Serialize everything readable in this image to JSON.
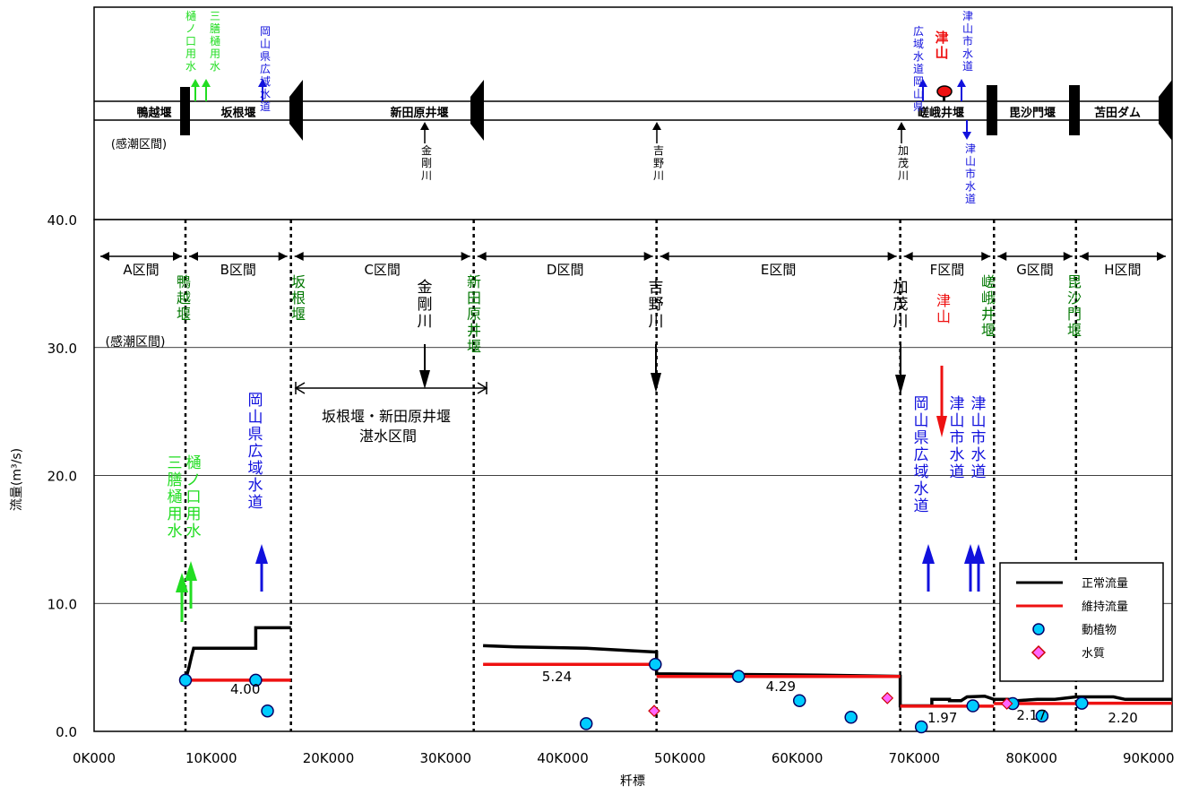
{
  "schematic": {
    "weirs": [
      {
        "id": "kamo",
        "label": "鴨越堰"
      },
      {
        "id": "sakane",
        "label": "坂根堰"
      },
      {
        "id": "shindenbara",
        "label": "新田原井堰"
      },
      {
        "id": "saga",
        "label": "嵯峨井堰"
      },
      {
        "id": "bishamon",
        "label": "毘沙門堰"
      },
      {
        "id": "tomata",
        "label": "苫田ダム"
      }
    ],
    "tidal_label": "(感潮区間)",
    "intakes": [
      {
        "id": "hinokuchi",
        "label": "樋ノ口用水",
        "color": "#22dd22"
      },
      {
        "id": "mitsuzen",
        "label": "三膳樋用水",
        "color": "#22dd22"
      },
      {
        "id": "okayama1",
        "label": "岡山県広域水道",
        "color": "#1111dd"
      },
      {
        "id": "okayama2",
        "label": "広域水道岡山県",
        "color": "#1111dd"
      },
      {
        "id": "tsuyama_up",
        "label": "津山市水道",
        "color": "#1111dd"
      },
      {
        "id": "tsuyama_down",
        "label": "津山市水道",
        "color": "#1111dd"
      }
    ],
    "tributaries": [
      {
        "id": "kongo",
        "label": "金剛川"
      },
      {
        "id": "yoshino",
        "label": "吉野川"
      },
      {
        "id": "kamogawa",
        "label": "加茂川"
      }
    ],
    "city": {
      "label": "津山",
      "color": "#ee1111"
    }
  },
  "main": {
    "sections": [
      "A区間",
      "B区間",
      "C区間",
      "D区間",
      "E区間",
      "F区間",
      "G区間",
      "H区間"
    ],
    "tidal_label": "(感潮区間)",
    "weir_labels": [
      "鴨越堰",
      "坂根堰",
      "新田原井堰",
      "嵯峨井堰",
      "毘沙門堰"
    ],
    "tributary_labels": [
      "金剛川",
      "吉野川",
      "加茂川"
    ],
    "city_label": "津山",
    "intake_labels": [
      {
        "text": "三膳樋用水",
        "color": "#22dd22"
      },
      {
        "text": "樋ノ口用水",
        "color": "#22dd22"
      },
      {
        "text": "岡山県広域水道",
        "color": "#1111dd"
      },
      {
        "text": "岡山県広域水道",
        "color": "#1111dd"
      },
      {
        "text": "津山市水道",
        "color": "#1111dd"
      },
      {
        "text": "津山市水道",
        "color": "#1111dd"
      }
    ],
    "pool": {
      "line1": "坂根堰・新田原井堰",
      "line2": "湛水区間"
    }
  },
  "legend": {
    "items": [
      {
        "label": "正常流量",
        "kind": "line",
        "color": "#000000"
      },
      {
        "label": "維持流量",
        "kind": "line",
        "color": "#ee1111"
      },
      {
        "label": "動植物",
        "kind": "circle",
        "color": "#00ccff"
      },
      {
        "label": "水質",
        "kind": "diamond",
        "color": "#ff66ff"
      }
    ]
  },
  "chart_data": {
    "type": "line",
    "xlabel": "粁標",
    "ylabel": "流量(m³/s)",
    "xlim": [
      0,
      92000
    ],
    "ylim": [
      0,
      40
    ],
    "x_tick_labels": [
      "0K000",
      "10K000",
      "20K000",
      "30K000",
      "40K000",
      "50K000",
      "60K000",
      "70K000",
      "80K000",
      "90K000"
    ],
    "y_tick_labels": [
      "0.0",
      "10.0",
      "20.0",
      "30.0",
      "40.0"
    ],
    "section_boundaries_km": [
      7.8,
      16.8,
      32.4,
      48.0,
      68.8,
      76.8,
      83.8
    ],
    "series": [
      {
        "name": "正常流量",
        "color": "#000000",
        "segments": [
          [
            [
              7.8,
              4.0
            ],
            [
              8.1,
              5.0
            ],
            [
              8.3,
              5.8
            ],
            [
              8.5,
              6.5
            ],
            [
              13.8,
              6.5
            ],
            [
              13.8,
              8.1
            ],
            [
              16.8,
              8.1
            ]
          ],
          [
            [
              33.2,
              6.7
            ],
            [
              36.0,
              6.6
            ],
            [
              42.0,
              6.5
            ],
            [
              46.0,
              6.3
            ],
            [
              48.0,
              6.2
            ],
            [
              48.0,
              4.5
            ],
            [
              55.0,
              4.45
            ],
            [
              62.0,
              4.4
            ],
            [
              68.8,
              4.3
            ],
            [
              68.8,
              2.0
            ],
            [
              71.5,
              2.0
            ],
            [
              71.5,
              2.5
            ],
            [
              73.0,
              2.5
            ],
            [
              73.0,
              2.4
            ],
            [
              74.0,
              2.4
            ],
            [
              74.5,
              2.7
            ],
            [
              76.0,
              2.75
            ],
            [
              76.8,
              2.5
            ],
            [
              78.0,
              2.5
            ],
            [
              78.8,
              2.4
            ],
            [
              80.5,
              2.5
            ],
            [
              82.0,
              2.5
            ],
            [
              83.8,
              2.7
            ],
            [
              87.0,
              2.7
            ],
            [
              88.0,
              2.5
            ],
            [
              92.0,
              2.5
            ]
          ]
        ]
      },
      {
        "name": "維持流量",
        "color": "#ee1111",
        "segments": [
          [
            [
              7.8,
              4.0
            ],
            [
              16.8,
              4.0
            ]
          ],
          [
            [
              33.2,
              5.24
            ],
            [
              48.0,
              5.24
            ]
          ],
          [
            [
              48.0,
              4.29
            ],
            [
              68.8,
              4.29
            ]
          ],
          [
            [
              68.8,
              1.97
            ],
            [
              76.8,
              1.97
            ]
          ],
          [
            [
              76.8,
              2.17
            ],
            [
              83.8,
              2.17
            ]
          ],
          [
            [
              83.8,
              2.2
            ],
            [
              92.0,
              2.2
            ]
          ]
        ]
      }
    ],
    "points": [
      {
        "series": "動植物",
        "points": [
          [
            7.8,
            4.0
          ],
          [
            13.8,
            4.0
          ],
          [
            14.8,
            1.6
          ],
          [
            42.0,
            0.6
          ],
          [
            47.9,
            5.24
          ],
          [
            55.0,
            4.3
          ],
          [
            60.2,
            2.4
          ],
          [
            64.6,
            1.1
          ],
          [
            70.6,
            0.35
          ],
          [
            75.0,
            2.0
          ],
          [
            78.4,
            2.17
          ],
          [
            80.9,
            1.2
          ],
          [
            84.3,
            2.2
          ]
        ]
      },
      {
        "series": "水質",
        "points": [
          [
            47.8,
            1.6
          ],
          [
            67.7,
            2.6
          ],
          [
            77.9,
            2.17
          ]
        ]
      }
    ],
    "data_labels": [
      {
        "x": 12.9,
        "text": "4.00"
      },
      {
        "x": 39.5,
        "text": "5.24"
      },
      {
        "x": 58.6,
        "text": "4.29"
      },
      {
        "x": 72.4,
        "text": "1.97"
      },
      {
        "x": 80.0,
        "text": "2.17"
      },
      {
        "x": 87.8,
        "text": "2.20"
      }
    ]
  }
}
